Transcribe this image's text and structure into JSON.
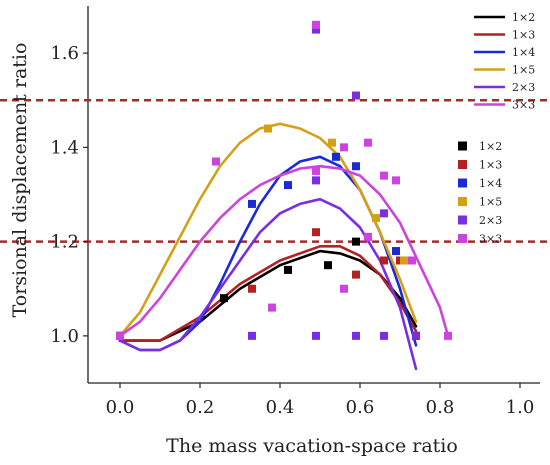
{
  "chart_data": {
    "type": "scatter",
    "title": "",
    "xlabel": "The mass vacation-space ratio",
    "ylabel": "Torsional displacement ratio",
    "xlim": [
      -0.08,
      1.05
    ],
    "ylim": [
      0.9,
      1.7
    ],
    "x_ticks": [
      "0.0",
      "0.2",
      "0.4",
      "0.6",
      "0.8",
      "1.0"
    ],
    "y_ticks": [
      "1.0",
      "1.2",
      "1.4",
      "1.6"
    ],
    "x_tick_values": [
      0.0,
      0.2,
      0.4,
      0.6,
      0.8,
      1.0
    ],
    "y_tick_values": [
      1.0,
      1.2,
      1.4,
      1.6
    ],
    "reference_lines": [
      {
        "y": 1.5,
        "color": "#a52a2a",
        "style": "dashed"
      },
      {
        "y": 1.2,
        "color": "#a52a2a",
        "style": "dashed"
      }
    ],
    "legend_placement_lines": "top-right",
    "legend_placement_points": "right",
    "series": [
      {
        "name": "1×2",
        "color": "#000000",
        "points": [
          [
            0.0,
            1.0
          ],
          [
            0.26,
            1.08
          ],
          [
            0.42,
            1.14
          ],
          [
            0.52,
            1.15
          ],
          [
            0.59,
            1.2
          ]
        ],
        "fit": [
          [
            0.0,
            0.99
          ],
          [
            0.1,
            0.99
          ],
          [
            0.2,
            1.03
          ],
          [
            0.3,
            1.1
          ],
          [
            0.4,
            1.15
          ],
          [
            0.5,
            1.18
          ],
          [
            0.55,
            1.175
          ],
          [
            0.6,
            1.16
          ],
          [
            0.65,
            1.13
          ],
          [
            0.7,
            1.08
          ],
          [
            0.74,
            1.02
          ]
        ]
      },
      {
        "name": "1×3",
        "color": "#b22222",
        "points": [
          [
            0.0,
            1.0
          ],
          [
            0.33,
            1.1
          ],
          [
            0.49,
            1.22
          ],
          [
            0.59,
            1.13
          ],
          [
            0.66,
            1.16
          ],
          [
            0.7,
            1.16
          ],
          [
            0.74,
            1.0
          ]
        ],
        "fit": [
          [
            0.0,
            0.99
          ],
          [
            0.1,
            0.99
          ],
          [
            0.2,
            1.04
          ],
          [
            0.3,
            1.11
          ],
          [
            0.4,
            1.16
          ],
          [
            0.5,
            1.19
          ],
          [
            0.55,
            1.19
          ],
          [
            0.6,
            1.17
          ],
          [
            0.65,
            1.13
          ],
          [
            0.7,
            1.07
          ],
          [
            0.74,
            1.01
          ]
        ]
      },
      {
        "name": "1×4",
        "color": "#1a2bd6",
        "points": [
          [
            0.0,
            1.0
          ],
          [
            0.33,
            1.28
          ],
          [
            0.42,
            1.32
          ],
          [
            0.54,
            1.38
          ],
          [
            0.59,
            1.36
          ],
          [
            0.69,
            1.18
          ],
          [
            0.74,
            1.0
          ]
        ],
        "fit": [
          [
            0.0,
            0.99
          ],
          [
            0.05,
            0.97
          ],
          [
            0.1,
            0.97
          ],
          [
            0.15,
            0.99
          ],
          [
            0.2,
            1.03
          ],
          [
            0.25,
            1.11
          ],
          [
            0.3,
            1.2
          ],
          [
            0.35,
            1.28
          ],
          [
            0.4,
            1.34
          ],
          [
            0.45,
            1.37
          ],
          [
            0.5,
            1.38
          ],
          [
            0.55,
            1.36
          ],
          [
            0.6,
            1.31
          ],
          [
            0.65,
            1.22
          ],
          [
            0.7,
            1.1
          ],
          [
            0.74,
            0.98
          ]
        ]
      },
      {
        "name": "1×5",
        "color": "#d4a017",
        "points": [
          [
            0.0,
            1.0
          ],
          [
            0.24,
            1.37
          ],
          [
            0.37,
            1.44
          ],
          [
            0.53,
            1.41
          ],
          [
            0.64,
            1.25
          ],
          [
            0.71,
            1.16
          ]
        ],
        "fit": [
          [
            0.0,
            1.0
          ],
          [
            0.05,
            1.05
          ],
          [
            0.1,
            1.13
          ],
          [
            0.15,
            1.21
          ],
          [
            0.2,
            1.29
          ],
          [
            0.25,
            1.36
          ],
          [
            0.3,
            1.41
          ],
          [
            0.35,
            1.44
          ],
          [
            0.4,
            1.45
          ],
          [
            0.45,
            1.44
          ],
          [
            0.5,
            1.42
          ],
          [
            0.55,
            1.38
          ],
          [
            0.6,
            1.31
          ],
          [
            0.65,
            1.22
          ],
          [
            0.7,
            1.12
          ],
          [
            0.74,
            1.03
          ]
        ]
      },
      {
        "name": "2×3",
        "color": "#7a2ee0",
        "points": [
          [
            0.0,
            1.0
          ],
          [
            0.33,
            1.0
          ],
          [
            0.49,
            1.0
          ],
          [
            0.59,
            1.0
          ],
          [
            0.66,
            1.0
          ],
          [
            0.74,
            1.0
          ],
          [
            0.49,
            1.65
          ],
          [
            0.49,
            1.33
          ],
          [
            0.59,
            1.51
          ],
          [
            0.66,
            1.26
          ]
        ],
        "fit": [
          [
            0.0,
            0.99
          ],
          [
            0.05,
            0.97
          ],
          [
            0.1,
            0.97
          ],
          [
            0.15,
            0.99
          ],
          [
            0.2,
            1.04
          ],
          [
            0.25,
            1.1
          ],
          [
            0.3,
            1.16
          ],
          [
            0.35,
            1.22
          ],
          [
            0.4,
            1.26
          ],
          [
            0.45,
            1.28
          ],
          [
            0.5,
            1.29
          ],
          [
            0.55,
            1.27
          ],
          [
            0.6,
            1.23
          ],
          [
            0.65,
            1.16
          ],
          [
            0.7,
            1.06
          ],
          [
            0.74,
            0.93
          ]
        ]
      },
      {
        "name": "3×3",
        "color": "#cc44dd",
        "points": [
          [
            0.0,
            1.0
          ],
          [
            0.24,
            1.37
          ],
          [
            0.38,
            1.06
          ],
          [
            0.49,
            1.66
          ],
          [
            0.49,
            1.35
          ],
          [
            0.56,
            1.1
          ],
          [
            0.56,
            1.4
          ],
          [
            0.62,
            1.41
          ],
          [
            0.62,
            1.21
          ],
          [
            0.66,
            1.34
          ],
          [
            0.69,
            1.33
          ],
          [
            0.73,
            1.16
          ],
          [
            0.82,
            1.0
          ]
        ],
        "fit": [
          [
            0.0,
            1.0
          ],
          [
            0.05,
            1.03
          ],
          [
            0.1,
            1.08
          ],
          [
            0.15,
            1.14
          ],
          [
            0.2,
            1.2
          ],
          [
            0.25,
            1.25
          ],
          [
            0.3,
            1.29
          ],
          [
            0.35,
            1.32
          ],
          [
            0.4,
            1.34
          ],
          [
            0.45,
            1.355
          ],
          [
            0.5,
            1.36
          ],
          [
            0.55,
            1.355
          ],
          [
            0.6,
            1.34
          ],
          [
            0.65,
            1.3
          ],
          [
            0.7,
            1.24
          ],
          [
            0.75,
            1.15
          ],
          [
            0.8,
            1.06
          ],
          [
            0.82,
            1.0
          ]
        ]
      }
    ]
  }
}
